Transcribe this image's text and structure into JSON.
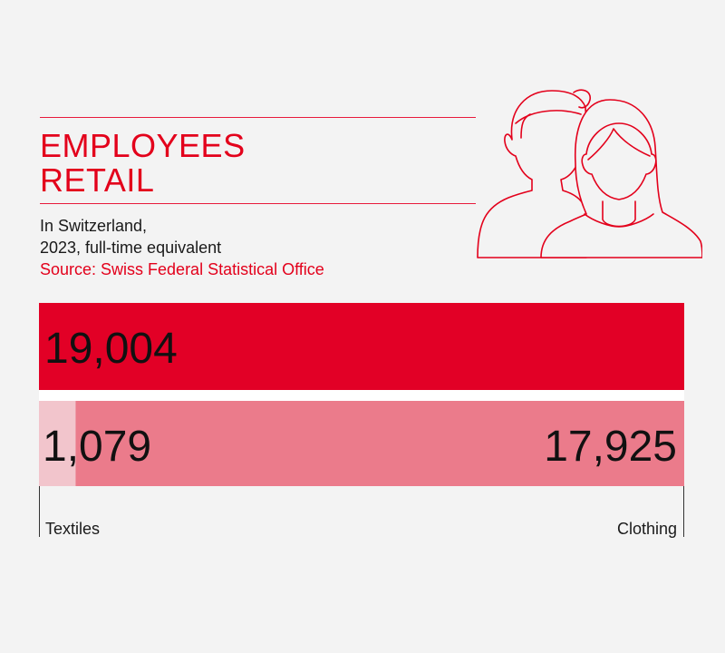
{
  "title_lines": [
    "EMPLOYEES",
    "RETAIL"
  ],
  "subtitle_lines": [
    "In Switzerland,",
    "2023, full-time equivalent"
  ],
  "source": "Source: Swiss Federal Statistical Office",
  "icon": "people-icon",
  "colors": {
    "accent": "#e3001b",
    "total_bar": "#e20026",
    "clothing_bar": "#eb7b8b",
    "textiles_bar": "#f2c5cc",
    "background": "#f3f3f3"
  },
  "chart_data": {
    "type": "bar",
    "total": {
      "label": "19,004",
      "value": 19004
    },
    "segments": [
      {
        "name": "Textiles",
        "label": "1,079",
        "value": 1079
      },
      {
        "name": "Clothing",
        "label": "17,925",
        "value": 17925
      }
    ],
    "xlim": [
      0,
      19004
    ]
  }
}
